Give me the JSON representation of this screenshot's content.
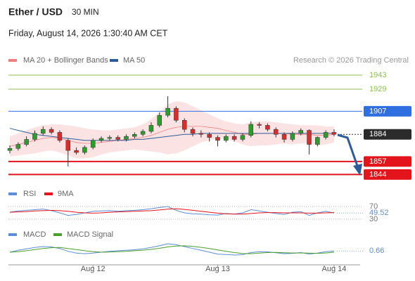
{
  "chart_data": [
    {
      "type": "candlestick",
      "title": "Ether / USD",
      "subtitle": "30 MIN",
      "date": "Friday, August 14, 2026 1:30:40 AM CET",
      "source": "Research © 2026 Trading Central",
      "categories": [
        null,
        null,
        null,
        null,
        null,
        null,
        null,
        null,
        null,
        null,
        "Aug 12",
        null,
        null,
        null,
        null,
        null,
        null,
        null,
        null,
        null,
        null,
        null,
        null,
        null,
        null,
        "Aug 13",
        null,
        null,
        null,
        null,
        null,
        null,
        null,
        null,
        null,
        null,
        null,
        null,
        null,
        "Aug 14"
      ],
      "open": [
        1868,
        1870,
        1874,
        1879,
        1885,
        1889,
        1886,
        1878,
        1868,
        1866,
        1871,
        1878,
        1880,
        1881,
        1879,
        1882,
        1884,
        1887,
        1893,
        1903,
        1910,
        1898,
        1889,
        1885,
        1884,
        1881,
        1878,
        1882,
        1879,
        1883,
        1894,
        1893,
        1889,
        1884,
        1879,
        1885,
        1888,
        1874,
        1881,
        1886
      ],
      "high": [
        1873,
        1876,
        1882,
        1888,
        1892,
        1891,
        1888,
        1880,
        1871,
        1873,
        1880,
        1882,
        1883,
        1883,
        1884,
        1886,
        1889,
        1896,
        1906,
        1922,
        1912,
        1900,
        1891,
        1888,
        1886,
        1883,
        1884,
        1884,
        1885,
        1897,
        1896,
        1895,
        1891,
        1886,
        1887,
        1890,
        1889,
        1882,
        1888,
        1889
      ],
      "low": [
        1865,
        1868,
        1872,
        1877,
        1883,
        1884,
        1876,
        1852,
        1864,
        1864,
        1869,
        1876,
        1878,
        1877,
        1877,
        1880,
        1882,
        1885,
        1891,
        1901,
        1896,
        1886,
        1882,
        1881,
        1877,
        1872,
        1876,
        1877,
        1877,
        1881,
        1890,
        1887,
        1881,
        1876,
        1877,
        1883,
        1864,
        1872,
        1879,
        1882
      ],
      "close": [
        1870,
        1874,
        1879,
        1885,
        1889,
        1886,
        1878,
        1868,
        1866,
        1871,
        1878,
        1880,
        1881,
        1879,
        1882,
        1884,
        1887,
        1893,
        1903,
        1910,
        1898,
        1889,
        1885,
        1884,
        1881,
        1878,
        1882,
        1879,
        1883,
        1894,
        1893,
        1889,
        1884,
        1879,
        1885,
        1888,
        1874,
        1881,
        1886,
        1884
      ],
      "up_color": "#2e9b2e",
      "down_color": "#d32f2f",
      "series": [
        {
          "name": "MA 20 + Bollinger Bands",
          "color": "#f08080",
          "values": [
            1872,
            1874,
            1876,
            1878,
            1880,
            1881,
            1880,
            1878,
            1876,
            1875,
            1875,
            1876,
            1877,
            1878,
            1879,
            1880,
            1881,
            1883,
            1886,
            1889,
            1891,
            1892,
            1892,
            1892,
            1891,
            1890,
            1888,
            1886,
            1884,
            1884,
            1885,
            1885,
            1885,
            1885,
            1884,
            1884,
            1884,
            1883,
            1883,
            1884
          ],
          "upper": [
            1882,
            1885,
            1888,
            1891,
            1893,
            1894,
            1894,
            1893,
            1892,
            1890,
            1889,
            1888,
            1888,
            1889,
            1890,
            1891,
            1894,
            1899,
            1906,
            1914,
            1917,
            1916,
            1912,
            1908,
            1904,
            1900,
            1897,
            1895,
            1894,
            1896,
            1897,
            1897,
            1896,
            1895,
            1894,
            1893,
            1893,
            1893,
            1892,
            1892
          ],
          "lower": [
            1862,
            1863,
            1864,
            1865,
            1867,
            1868,
            1866,
            1863,
            1860,
            1860,
            1861,
            1864,
            1866,
            1867,
            1868,
            1869,
            1868,
            1867,
            1866,
            1864,
            1865,
            1868,
            1872,
            1876,
            1878,
            1880,
            1879,
            1877,
            1874,
            1872,
            1873,
            1873,
            1874,
            1875,
            1874,
            1875,
            1875,
            1873,
            1874,
            1876
          ]
        },
        {
          "name": "MA 50",
          "color": "#2e5b9a",
          "values": [
            1890,
            1888,
            1886,
            1884,
            1883,
            1882,
            1881,
            1880,
            1879,
            1878,
            1878,
            1878,
            1878,
            1878,
            1878,
            1879,
            1879,
            1880,
            1881,
            1882,
            1883,
            1884,
            1884,
            1885,
            1885,
            1885,
            1885,
            1885,
            1885,
            1885,
            1885,
            1885,
            1885,
            1885,
            1885,
            1885,
            1885,
            1885,
            1885,
            1885
          ]
        }
      ],
      "levels": [
        {
          "value": 1943,
          "color": "#8cc152",
          "boxed": false
        },
        {
          "value": 1929,
          "color": "#8cc152",
          "boxed": false
        },
        {
          "value": 1907,
          "color": "#2f6fe0",
          "boxed": true
        },
        {
          "value": 1884,
          "color": "#2b2b2b",
          "boxed": true,
          "dashed": true
        },
        {
          "value": 1857,
          "color": "#e3141b",
          "boxed": true
        },
        {
          "value": 1844,
          "color": "#e3141b",
          "boxed": true
        }
      ],
      "ylim": [
        1839.4,
        1947.9
      ]
    },
    {
      "type": "line",
      "series": [
        {
          "name": "RSI",
          "color": "#5b8dd9",
          "values": [
            52,
            56,
            58,
            60,
            62,
            57,
            50,
            42,
            45,
            50,
            55,
            56,
            57,
            55,
            57,
            58,
            60,
            63,
            67,
            70,
            58,
            50,
            47,
            46,
            44,
            43,
            48,
            46,
            50,
            60,
            56,
            52,
            48,
            45,
            52,
            54,
            42,
            50,
            55,
            49.52
          ]
        },
        {
          "name": "9MA",
          "color": "#e3141b",
          "values": [
            52,
            53,
            54,
            56,
            57,
            58,
            57,
            55,
            52,
            50,
            49,
            50,
            52,
            53,
            54,
            55,
            56,
            57,
            59,
            62,
            63,
            61,
            58,
            55,
            52,
            49,
            47,
            46,
            46,
            48,
            50,
            51,
            51,
            50,
            50,
            50,
            49,
            49,
            50,
            51
          ]
        }
      ],
      "ylim": [
        20,
        80
      ],
      "yticks": [
        70,
        30
      ]
    },
    {
      "type": "line",
      "series": [
        {
          "name": "MACD",
          "color": "#5b8dd9",
          "values": [
            0,
            1,
            1.8,
            2.5,
            3,
            2.8,
            2,
            0.5,
            -0.5,
            -0.8,
            -0.5,
            0,
            0.5,
            0.8,
            1,
            1.3,
            1.8,
            2.5,
            3.5,
            4.5,
            4,
            3,
            2,
            1,
            0,
            -1,
            -1.2,
            -1.5,
            -1.3,
            -0.2,
            0.3,
            0.2,
            -0.3,
            -0.8,
            -0.6,
            -0.2,
            -1,
            -0.5,
            0.3,
            0.66
          ]
        },
        {
          "name": "MACD Signal",
          "color": "#4aa02c",
          "values": [
            0,
            0.3,
            0.8,
            1.4,
            2,
            2.4,
            2.5,
            2,
            1.4,
            0.8,
            0.3,
            0,
            0.1,
            0.3,
            0.5,
            0.8,
            1.1,
            1.5,
            2.1,
            2.8,
            3.3,
            3.4,
            3.1,
            2.6,
            2,
            1.2,
            0.5,
            -0.2,
            -0.7,
            -0.8,
            -0.5,
            -0.2,
            -0.1,
            -0.3,
            -0.4,
            -0.4,
            -0.5,
            -0.6,
            -0.4,
            0
          ]
        }
      ],
      "ylim": [
        -6,
        6
      ]
    }
  ]
}
